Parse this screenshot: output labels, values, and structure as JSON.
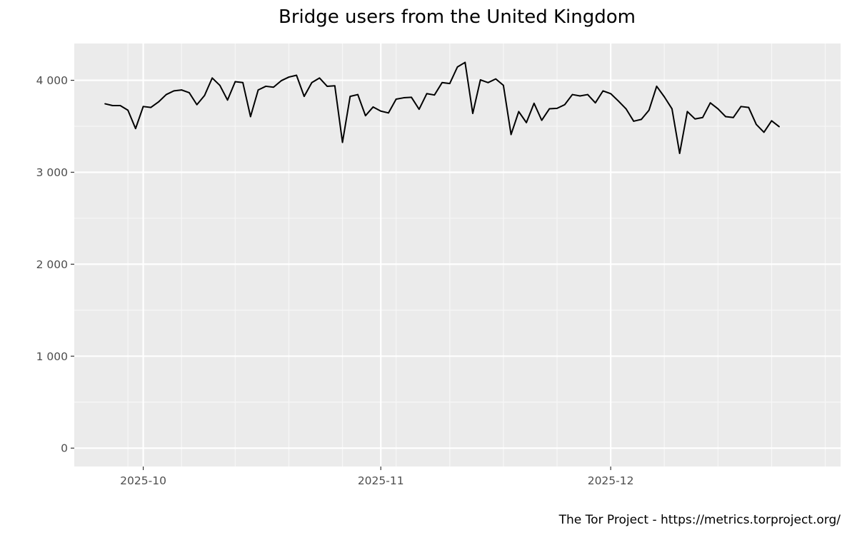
{
  "chart_data": {
    "type": "line",
    "title": "Bridge users from the United Kingdom",
    "xlabel": "",
    "ylabel": "",
    "caption": "The Tor Project - https://metrics.torproject.org/",
    "x_start": "2025-09-26",
    "x_step_days": 1,
    "xlim": [
      "2025-09-22",
      "2025-12-31"
    ],
    "ylim": [
      -200,
      4400
    ],
    "y_ticks": [
      0,
      1000,
      2000,
      3000,
      4000
    ],
    "y_tick_labels": [
      "0",
      "1 000",
      "2 000",
      "3 000",
      "4 000"
    ],
    "x_ticks": [
      "2025-10-01",
      "2025-11-01",
      "2025-12-01"
    ],
    "x_tick_labels": [
      "2025-10",
      "2025-11",
      "2025-12"
    ],
    "grid": true,
    "background": "#ebebeb",
    "line_color": "#000000",
    "values": [
      3745,
      3725,
      3725,
      3675,
      3475,
      3715,
      3705,
      3765,
      3845,
      3885,
      3895,
      3865,
      3735,
      3835,
      4025,
      3945,
      3785,
      3985,
      3975,
      3605,
      3895,
      3935,
      3925,
      3995,
      4035,
      4055,
      3825,
      3975,
      4025,
      3935,
      3940,
      3325,
      3825,
      3845,
      3615,
      3710,
      3665,
      3645,
      3795,
      3810,
      3815,
      3685,
      3855,
      3840,
      3975,
      3965,
      4145,
      4195,
      3640,
      4005,
      3975,
      4015,
      3945,
      3410,
      3660,
      3540,
      3750,
      3565,
      3690,
      3695,
      3735,
      3845,
      3830,
      3845,
      3755,
      3885,
      3855,
      3775,
      3690,
      3555,
      3575,
      3675,
      3935,
      3820,
      3690,
      3205,
      3660,
      3580,
      3595,
      3755,
      3690,
      3605,
      3595,
      3715,
      3705,
      3520,
      3435,
      3560,
      3495
    ]
  }
}
